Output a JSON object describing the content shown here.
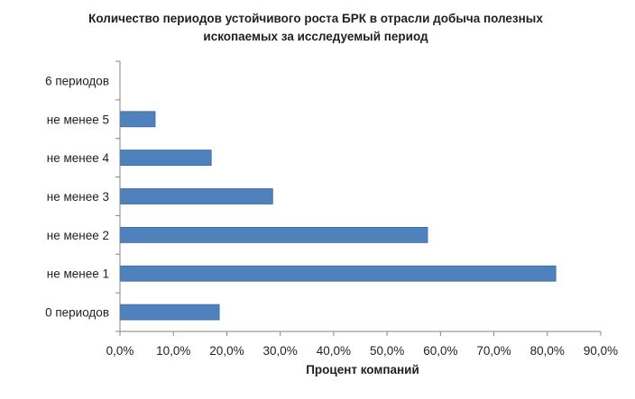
{
  "chart_data": {
    "type": "bar",
    "orientation": "horizontal",
    "title_lines": [
      "Количество  периодов устойчивого  роста БРК в отрасли добыча полезных",
      "ископаемых за исследуемый период"
    ],
    "xlabel": "Процент компаний",
    "ylabel": "",
    "categories": [
      "6 периодов",
      "не менее 5",
      "не менее 4",
      "не менее 3",
      "не менее 2",
      "не менее 1",
      "0 периодов"
    ],
    "values": [
      0,
      6.5,
      17.0,
      28.5,
      57.5,
      81.5,
      18.5
    ],
    "xlim": [
      0,
      90
    ],
    "x_ticks": [
      "0,0%",
      "10,0%",
      "20,0%",
      "30,0%",
      "40,0%",
      "50,0%",
      "60,0%",
      "70,0%",
      "80,0%",
      "90,0%"
    ],
    "grid": false,
    "legend": "none",
    "bar_color": "#4f81bd"
  }
}
